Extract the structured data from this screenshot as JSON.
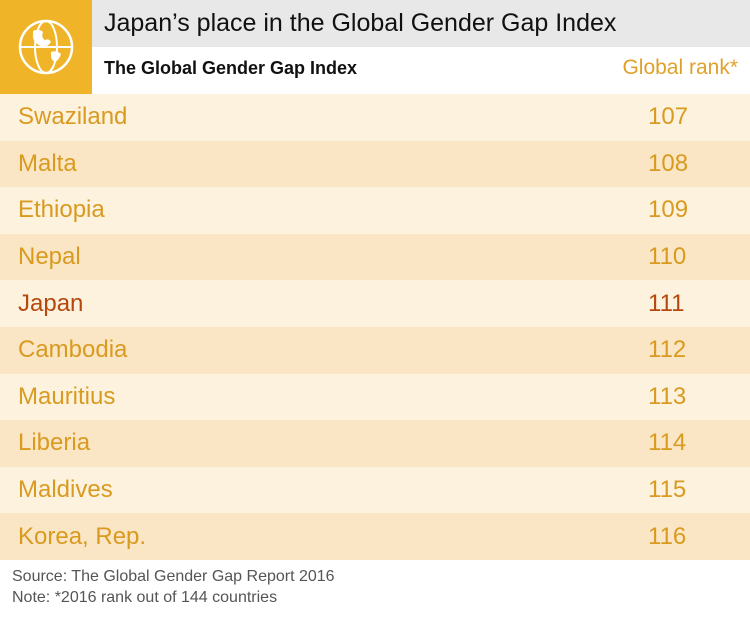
{
  "header": {
    "title": "Japan’s place in the Global Gender Gap Index",
    "subtitle": "The Global Gender Gap Index",
    "column_label": "Global rank*",
    "icon": "globe-icon"
  },
  "chart_data": {
    "type": "table",
    "title": "Japan’s place in the Global Gender Gap Index",
    "subtitle": "The Global Gender Gap Index",
    "columns": [
      "",
      "Global rank*"
    ],
    "highlight": "Japan",
    "rows": [
      {
        "country": "Swaziland",
        "rank": "107"
      },
      {
        "country": "Malta",
        "rank": "108"
      },
      {
        "country": "Ethiopia",
        "rank": "109"
      },
      {
        "country": "Nepal",
        "rank": "110"
      },
      {
        "country": "Japan",
        "rank": "111"
      },
      {
        "country": "Cambodia",
        "rank": "112"
      },
      {
        "country": "Mauritius",
        "rank": "113"
      },
      {
        "country": "Liberia",
        "rank": "114"
      },
      {
        "country": "Maldives",
        "rank": "115"
      },
      {
        "country": "Korea, Rep.",
        "rank": "116"
      }
    ]
  },
  "colors": {
    "accent": "#f0b429",
    "row_light": "#fdf2de",
    "row_mid": "#fae6c4",
    "text_orange": "#d99a20",
    "highlight_text": "#b5480f"
  },
  "footer": {
    "source": "Source: The Global Gender Gap Report 2016",
    "note": "Note: *2016 rank out of 144 countries"
  }
}
